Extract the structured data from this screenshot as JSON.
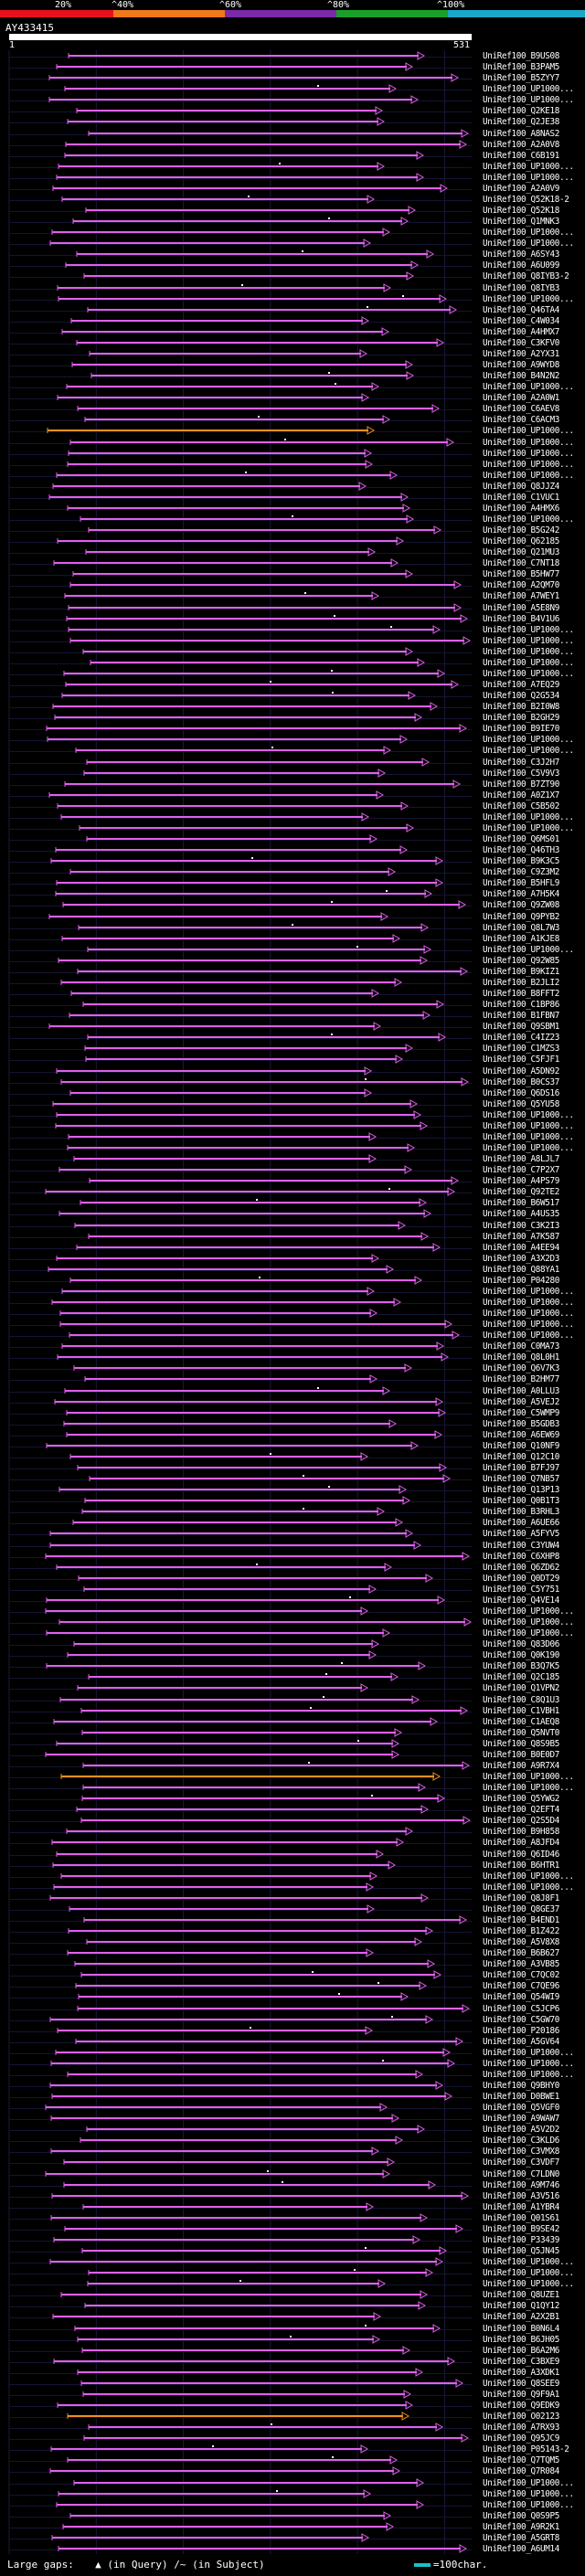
{
  "colors": {
    "background": "#000000",
    "scale_red": "#e8101c",
    "scale_orange": "#f07a1a",
    "scale_purple": "#7a2aa8",
    "scale_green": "#18a028",
    "scale_cyan": "#1aa8c8",
    "hit_magenta": "#e060e8",
    "hit_orange": "#f0901e",
    "gap_white": "#ffffff",
    "tick_blue": "#2a3aa8",
    "legend_cyan": "#17c3c7"
  },
  "identity_scale": {
    "labels": [
      "20%",
      "^40%",
      "^60%",
      "^80%",
      "^100%"
    ],
    "segment_colors": [
      "#e8101c",
      "#f07a1a",
      "#7a2aa8",
      "#18a028",
      "#1aa8c8"
    ]
  },
  "query": {
    "id": "AY433415",
    "start_label": "1",
    "end_label": "531"
  },
  "hits": [
    {
      "label": "UniRef100_B9US08",
      "color": "magenta"
    },
    {
      "label": "UniRef100_B3PAM5",
      "color": "magenta"
    },
    {
      "label": "UniRef100_B5ZYY7",
      "color": "magenta"
    },
    {
      "label": "UniRef100_UP1000...",
      "color": "magenta"
    },
    {
      "label": "UniRef100_UP1000...",
      "color": "magenta"
    },
    {
      "label": "UniRef100_Q2KE18",
      "color": "magenta"
    },
    {
      "label": "UniRef100_Q2JE38",
      "color": "magenta"
    },
    {
      "label": "UniRef100_A8NAS2",
      "color": "magenta"
    },
    {
      "label": "UniRef100_A2A0V8",
      "color": "magenta"
    },
    {
      "label": "UniRef100_C6B191",
      "color": "magenta"
    },
    {
      "label": "UniRef100_UP1000...",
      "color": "magenta"
    },
    {
      "label": "UniRef100_UP1000...",
      "color": "magenta"
    },
    {
      "label": "UniRef100_A2A0V9",
      "color": "magenta"
    },
    {
      "label": "UniRef100_Q52K18-2",
      "color": "magenta"
    },
    {
      "label": "UniRef100_Q52K18",
      "color": "magenta"
    },
    {
      "label": "UniRef100_Q1MNK3",
      "color": "magenta"
    },
    {
      "label": "UniRef100_UP1000...",
      "color": "magenta"
    },
    {
      "label": "UniRef100_UP1000...",
      "color": "magenta"
    },
    {
      "label": "UniRef100_A6SY43",
      "color": "magenta"
    },
    {
      "label": "UniRef100_A6U099",
      "color": "magenta"
    },
    {
      "label": "UniRef100_Q8IYB3-2",
      "color": "magenta"
    },
    {
      "label": "UniRef100_Q8IYB3",
      "color": "magenta"
    },
    {
      "label": "UniRef100_UP1000...",
      "color": "magenta"
    },
    {
      "label": "UniRef100_Q46TA4",
      "color": "magenta"
    },
    {
      "label": "UniRef100_C4W034",
      "color": "magenta"
    },
    {
      "label": "UniRef100_A4HMX7",
      "color": "magenta"
    },
    {
      "label": "UniRef100_C3KFV0",
      "color": "magenta"
    },
    {
      "label": "UniRef100_A2YX31",
      "color": "magenta"
    },
    {
      "label": "UniRef100_A9WYD8",
      "color": "magenta"
    },
    {
      "label": "UniRef100_B4N2N2",
      "color": "magenta"
    },
    {
      "label": "UniRef100_UP1000...",
      "color": "magenta"
    },
    {
      "label": "UniRef100_A2A0W1",
      "color": "magenta"
    },
    {
      "label": "UniRef100_C6AEV8",
      "color": "magenta"
    },
    {
      "label": "UniRef100_C6ACM3",
      "color": "magenta"
    },
    {
      "label": "UniRef100_UP1000...",
      "color": "orange"
    },
    {
      "label": "UniRef100_UP1000...",
      "color": "magenta"
    },
    {
      "label": "UniRef100_UP1000...",
      "color": "magenta"
    },
    {
      "label": "UniRef100_UP1000...",
      "color": "magenta"
    },
    {
      "label": "UniRef100_UP1000...",
      "color": "magenta"
    },
    {
      "label": "UniRef100_Q8JJZ4",
      "color": "magenta"
    },
    {
      "label": "UniRef100_C1VUC1",
      "color": "magenta"
    },
    {
      "label": "UniRef100_A4HMX6",
      "color": "magenta"
    },
    {
      "label": "UniRef100_UP1000...",
      "color": "magenta"
    },
    {
      "label": "UniRef100_B5G242",
      "color": "magenta"
    },
    {
      "label": "UniRef100_Q62185",
      "color": "magenta"
    },
    {
      "label": "UniRef100_Q21MU3",
      "color": "magenta"
    },
    {
      "label": "UniRef100_C7NT18",
      "color": "magenta"
    },
    {
      "label": "UniRef100_B5HW77",
      "color": "magenta"
    },
    {
      "label": "UniRef100_A2QM70",
      "color": "magenta"
    },
    {
      "label": "UniRef100_A7WEY1",
      "color": "magenta"
    },
    {
      "label": "UniRef100_A5E8N9",
      "color": "magenta"
    },
    {
      "label": "UniRef100_B4V1U6",
      "color": "magenta"
    },
    {
      "label": "UniRef100_UP1000...",
      "color": "magenta"
    },
    {
      "label": "UniRef100_UP1000...",
      "color": "magenta"
    },
    {
      "label": "UniRef100_UP1000...",
      "color": "magenta"
    },
    {
      "label": "UniRef100_UP1000...",
      "color": "magenta"
    },
    {
      "label": "UniRef100_UP1000...",
      "color": "magenta"
    },
    {
      "label": "UniRef100_A7EQ29",
      "color": "magenta"
    },
    {
      "label": "UniRef100_Q2G534",
      "color": "magenta"
    },
    {
      "label": "UniRef100_B2I0W8",
      "color": "magenta"
    },
    {
      "label": "UniRef100_B2GH29",
      "color": "magenta"
    },
    {
      "label": "UniRef100_B9IE70",
      "color": "magenta"
    },
    {
      "label": "UniRef100_UP1000...",
      "color": "magenta"
    },
    {
      "label": "UniRef100_UP1000...",
      "color": "magenta"
    },
    {
      "label": "UniRef100_C3J2H7",
      "color": "magenta"
    },
    {
      "label": "UniRef100_C5V9V3",
      "color": "magenta"
    },
    {
      "label": "UniRef100_B7ZT90",
      "color": "magenta"
    },
    {
      "label": "UniRef100_A0Z1X7",
      "color": "magenta"
    },
    {
      "label": "UniRef100_C5B502",
      "color": "magenta"
    },
    {
      "label": "UniRef100_UP1000...",
      "color": "magenta"
    },
    {
      "label": "UniRef100_UP1000...",
      "color": "magenta"
    },
    {
      "label": "UniRef100_Q6MS01",
      "color": "magenta"
    },
    {
      "label": "UniRef100_Q46TH3",
      "color": "magenta"
    },
    {
      "label": "UniRef100_B9K3C5",
      "color": "magenta"
    },
    {
      "label": "UniRef100_C9Z3M2",
      "color": "magenta"
    },
    {
      "label": "UniRef100_B5HFL9",
      "color": "magenta"
    },
    {
      "label": "UniRef100_A7H5K4",
      "color": "magenta"
    },
    {
      "label": "UniRef100_Q9ZW08",
      "color": "magenta"
    },
    {
      "label": "UniRef100_Q9PYB2",
      "color": "magenta"
    },
    {
      "label": "UniRef100_Q8L7W3",
      "color": "magenta"
    },
    {
      "label": "UniRef100_A1KJE8",
      "color": "magenta"
    },
    {
      "label": "UniRef100_UP1000...",
      "color": "magenta"
    },
    {
      "label": "UniRef100_Q92W85",
      "color": "magenta"
    },
    {
      "label": "UniRef100_B9KIZ1",
      "color": "magenta"
    },
    {
      "label": "UniRef100_B2JLI2",
      "color": "magenta"
    },
    {
      "label": "UniRef100_B8FFT2",
      "color": "magenta"
    },
    {
      "label": "UniRef100_C1BP86",
      "color": "magenta"
    },
    {
      "label": "UniRef100_B1FBN7",
      "color": "magenta"
    },
    {
      "label": "UniRef100_Q9SBM1",
      "color": "magenta"
    },
    {
      "label": "UniRef100_C4IZ23",
      "color": "magenta"
    },
    {
      "label": "UniRef100_C1MZS3",
      "color": "magenta"
    },
    {
      "label": "UniRef100_C5FJF1",
      "color": "magenta"
    },
    {
      "label": "UniRef100_A5DN92",
      "color": "magenta"
    },
    {
      "label": "UniRef100_B0CS37",
      "color": "magenta"
    },
    {
      "label": "UniRef100_Q6DS16",
      "color": "magenta"
    },
    {
      "label": "UniRef100_Q5YU58",
      "color": "magenta"
    },
    {
      "label": "UniRef100_UP1000...",
      "color": "magenta"
    },
    {
      "label": "UniRef100_UP1000...",
      "color": "magenta"
    },
    {
      "label": "UniRef100_UP1000...",
      "color": "magenta"
    },
    {
      "label": "UniRef100_UP1000...",
      "color": "magenta"
    },
    {
      "label": "UniRef100_A8LJL7",
      "color": "magenta"
    },
    {
      "label": "UniRef100_C7P2X7",
      "color": "magenta"
    },
    {
      "label": "UniRef100_A4PS79",
      "color": "magenta"
    },
    {
      "label": "UniRef100_Q92TE2",
      "color": "magenta"
    },
    {
      "label": "UniRef100_B6W517",
      "color": "magenta"
    },
    {
      "label": "UniRef100_A4US35",
      "color": "magenta"
    },
    {
      "label": "UniRef100_C3K2I3",
      "color": "magenta"
    },
    {
      "label": "UniRef100_A7K587",
      "color": "magenta"
    },
    {
      "label": "UniRef100_A4EE94",
      "color": "magenta"
    },
    {
      "label": "UniRef100_A3X2D3",
      "color": "magenta"
    },
    {
      "label": "UniRef100_Q88YA1",
      "color": "magenta"
    },
    {
      "label": "UniRef100_P04280",
      "color": "magenta"
    },
    {
      "label": "UniRef100_UP1000...",
      "color": "magenta"
    },
    {
      "label": "UniRef100_UP1000...",
      "color": "magenta"
    },
    {
      "label": "UniRef100_UP1000...",
      "color": "magenta"
    },
    {
      "label": "UniRef100_UP1000...",
      "color": "magenta"
    },
    {
      "label": "UniRef100_UP1000...",
      "color": "magenta"
    },
    {
      "label": "UniRef100_C0MA73",
      "color": "magenta"
    },
    {
      "label": "UniRef100_Q8L0H1",
      "color": "magenta"
    },
    {
      "label": "UniRef100_Q6V7K3",
      "color": "magenta"
    },
    {
      "label": "UniRef100_B2HM77",
      "color": "magenta"
    },
    {
      "label": "UniRef100_A0LLU3",
      "color": "magenta"
    },
    {
      "label": "UniRef100_A5VEJ2",
      "color": "magenta"
    },
    {
      "label": "UniRef100_C5WMP9",
      "color": "magenta"
    },
    {
      "label": "UniRef100_B5GDB3",
      "color": "magenta"
    },
    {
      "label": "UniRef100_A6EW69",
      "color": "magenta"
    },
    {
      "label": "UniRef100_Q10NF9",
      "color": "magenta"
    },
    {
      "label": "UniRef100_Q12C10",
      "color": "magenta"
    },
    {
      "label": "UniRef100_B7FJ97",
      "color": "magenta"
    },
    {
      "label": "UniRef100_Q7NB57",
      "color": "magenta"
    },
    {
      "label": "UniRef100_Q13P13",
      "color": "magenta"
    },
    {
      "label": "UniRef100_Q0B1T3",
      "color": "magenta"
    },
    {
      "label": "UniRef100_B3RHL3",
      "color": "magenta"
    },
    {
      "label": "UniRef100_A6UE66",
      "color": "magenta"
    },
    {
      "label": "UniRef100_A5FYV5",
      "color": "magenta"
    },
    {
      "label": "UniRef100_C3YUW4",
      "color": "magenta"
    },
    {
      "label": "UniRef100_C6XHP8",
      "color": "magenta"
    },
    {
      "label": "UniRef100_Q6ZD62",
      "color": "magenta"
    },
    {
      "label": "UniRef100_Q0DT29",
      "color": "magenta"
    },
    {
      "label": "UniRef100_C5Y751",
      "color": "magenta"
    },
    {
      "label": "UniRef100_Q4VE14",
      "color": "magenta"
    },
    {
      "label": "UniRef100_UP1000...",
      "color": "magenta"
    },
    {
      "label": "UniRef100_UP1000...",
      "color": "magenta"
    },
    {
      "label": "UniRef100_UP1000...",
      "color": "magenta"
    },
    {
      "label": "UniRef100_Q83D06",
      "color": "magenta"
    },
    {
      "label": "UniRef100_Q0K190",
      "color": "magenta"
    },
    {
      "label": "UniRef100_B3Q7K5",
      "color": "magenta"
    },
    {
      "label": "UniRef100_Q2C185",
      "color": "magenta"
    },
    {
      "label": "UniRef100_Q1VPN2",
      "color": "magenta"
    },
    {
      "label": "UniRef100_C8Q1U3",
      "color": "magenta"
    },
    {
      "label": "UniRef100_C1VBH1",
      "color": "magenta"
    },
    {
      "label": "UniRef100_C1AEQ8",
      "color": "magenta"
    },
    {
      "label": "UniRef100_Q5NVT0",
      "color": "magenta"
    },
    {
      "label": "UniRef100_Q8S9B5",
      "color": "magenta"
    },
    {
      "label": "UniRef100_B0E0D7",
      "color": "magenta"
    },
    {
      "label": "UniRef100_A9R7X4",
      "color": "magenta"
    },
    {
      "label": "UniRef100_UP1000...",
      "color": "orange"
    },
    {
      "label": "UniRef100_UP1000...",
      "color": "magenta"
    },
    {
      "label": "UniRef100_Q5YWG2",
      "color": "magenta"
    },
    {
      "label": "UniRef100_Q2EFT4",
      "color": "magenta"
    },
    {
      "label": "UniRef100_Q2S5D4",
      "color": "magenta"
    },
    {
      "label": "UniRef100_B9H858",
      "color": "magenta"
    },
    {
      "label": "UniRef100_A8JFD4",
      "color": "magenta"
    },
    {
      "label": "UniRef100_Q6ID46",
      "color": "magenta"
    },
    {
      "label": "UniRef100_B6HTR1",
      "color": "magenta"
    },
    {
      "label": "UniRef100_UP1000...",
      "color": "magenta"
    },
    {
      "label": "UniRef100_UP1000...",
      "color": "magenta"
    },
    {
      "label": "UniRef100_Q8J8F1",
      "color": "magenta"
    },
    {
      "label": "UniRef100_Q8GE37",
      "color": "magenta"
    },
    {
      "label": "UniRef100_B4END1",
      "color": "magenta"
    },
    {
      "label": "UniRef100_B1Z422",
      "color": "magenta"
    },
    {
      "label": "UniRef100_A5V8X8",
      "color": "magenta"
    },
    {
      "label": "UniRef100_B6B627",
      "color": "magenta"
    },
    {
      "label": "UniRef100_A3VB85",
      "color": "magenta"
    },
    {
      "label": "UniRef100_C7QC02",
      "color": "magenta"
    },
    {
      "label": "UniRef100_C7QE96",
      "color": "magenta"
    },
    {
      "label": "UniRef100_Q54WI9",
      "color": "magenta"
    },
    {
      "label": "UniRef100_C5JCP6",
      "color": "magenta"
    },
    {
      "label": "UniRef100_C5GW70",
      "color": "magenta"
    },
    {
      "label": "UniRef100_P20186",
      "color": "magenta"
    },
    {
      "label": "UniRef100_A5GV64",
      "color": "magenta"
    },
    {
      "label": "UniRef100_UP1000...",
      "color": "magenta"
    },
    {
      "label": "UniRef100_UP1000...",
      "color": "magenta"
    },
    {
      "label": "UniRef100_UP1000...",
      "color": "magenta"
    },
    {
      "label": "UniRef100_Q9BHY0",
      "color": "magenta"
    },
    {
      "label": "UniRef100_D0BWE1",
      "color": "magenta"
    },
    {
      "label": "UniRef100_Q5VGF0",
      "color": "magenta"
    },
    {
      "label": "UniRef100_A9WAW7",
      "color": "magenta"
    },
    {
      "label": "UniRef100_A5V2D2",
      "color": "magenta"
    },
    {
      "label": "UniRef100_C3KLD6",
      "color": "magenta"
    },
    {
      "label": "UniRef100_C3VMX8",
      "color": "magenta"
    },
    {
      "label": "UniRef100_C3VDF7",
      "color": "magenta"
    },
    {
      "label": "UniRef100_C7LDN0",
      "color": "magenta"
    },
    {
      "label": "UniRef100_A9M746",
      "color": "magenta"
    },
    {
      "label": "UniRef100_A3V516",
      "color": "magenta"
    },
    {
      "label": "UniRef100_A1YBR4",
      "color": "magenta"
    },
    {
      "label": "UniRef100_Q01S61",
      "color": "magenta"
    },
    {
      "label": "UniRef100_B9SE42",
      "color": "magenta"
    },
    {
      "label": "UniRef100_P33439",
      "color": "magenta"
    },
    {
      "label": "UniRef100_Q5JN45",
      "color": "magenta"
    },
    {
      "label": "UniRef100_UP1000...",
      "color": "magenta"
    },
    {
      "label": "UniRef100_UP1000...",
      "color": "magenta"
    },
    {
      "label": "UniRef100_UP1000...",
      "color": "magenta"
    },
    {
      "label": "UniRef100_Q8UZE1",
      "color": "magenta"
    },
    {
      "label": "UniRef100_Q1QY12",
      "color": "magenta"
    },
    {
      "label": "UniRef100_A2X2B1",
      "color": "magenta"
    },
    {
      "label": "UniRef100_B0N6L4",
      "color": "magenta"
    },
    {
      "label": "UniRef100_B6JH05",
      "color": "magenta"
    },
    {
      "label": "UniRef100_B6A2M6",
      "color": "magenta"
    },
    {
      "label": "UniRef100_C3BXE9",
      "color": "magenta"
    },
    {
      "label": "UniRef100_A3XDK1",
      "color": "magenta"
    },
    {
      "label": "UniRef100_Q8SEE9",
      "color": "magenta"
    },
    {
      "label": "UniRef100_Q9F9A1",
      "color": "magenta"
    },
    {
      "label": "UniRef100_Q9EDK9",
      "color": "magenta"
    },
    {
      "label": "UniRef100_O02123",
      "color": "orange"
    },
    {
      "label": "UniRef100_A7RX93",
      "color": "magenta"
    },
    {
      "label": "UniRef100_Q95JC9",
      "color": "magenta"
    },
    {
      "label": "UniRef100_P05143-2",
      "color": "magenta"
    },
    {
      "label": "UniRef100_Q7TQM5",
      "color": "magenta"
    },
    {
      "label": "UniRef100_Q7R084",
      "color": "magenta"
    },
    {
      "label": "UniRef100_UP1000...",
      "color": "magenta"
    },
    {
      "label": "UniRef100_UP1000...",
      "color": "magenta"
    },
    {
      "label": "UniRef100_UP1000...",
      "color": "magenta"
    },
    {
      "label": "UniRef100_Q0S9P5",
      "color": "magenta"
    },
    {
      "label": "UniRef100_A9R2K1",
      "color": "magenta"
    },
    {
      "label": "UniRef100_A5GRT8",
      "color": "magenta"
    },
    {
      "label": "UniRef100_A6UM14",
      "color": "magenta"
    }
  ],
  "footer": {
    "large_gaps_label": "Large gaps:",
    "query_gap_marker": "▲",
    "query_gap_text": "(in Query)",
    "subject_gap_marker": "/~",
    "subject_gap_text": "(in Subject)",
    "scale_text": "=100char."
  }
}
